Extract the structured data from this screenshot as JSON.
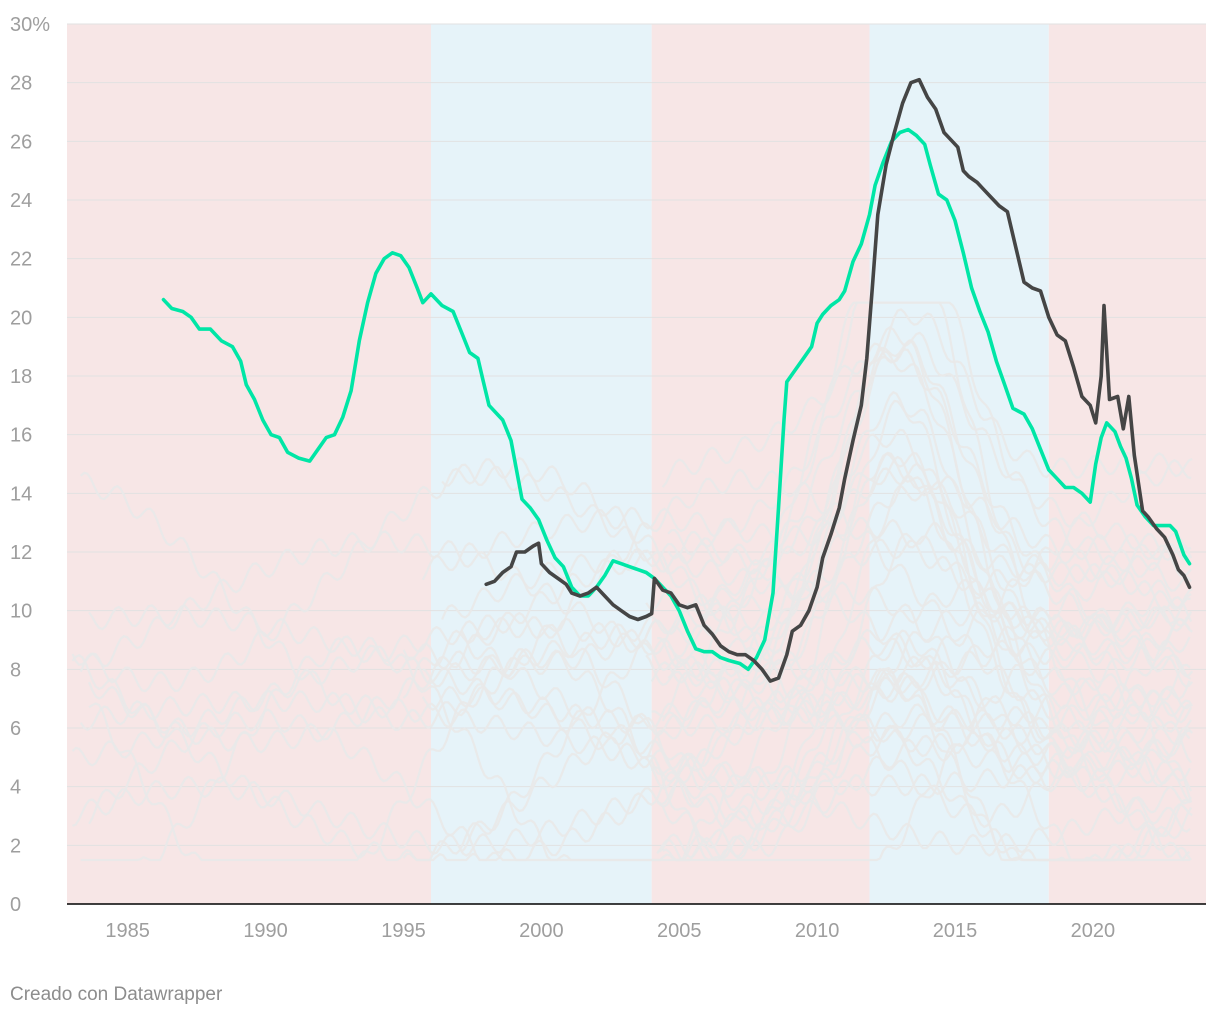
{
  "chart_data": {
    "type": "line",
    "title": "",
    "xlabel": "",
    "ylabel": "",
    "xlim": [
      1982.8,
      2024.1
    ],
    "ylim": [
      0,
      30
    ],
    "grid": true,
    "legend": "none",
    "x_ticks": [
      {
        "value": 1985,
        "label": "1985"
      },
      {
        "value": 1990,
        "label": "1990"
      },
      {
        "value": 1995,
        "label": "1995"
      },
      {
        "value": 2000,
        "label": "2000"
      },
      {
        "value": 2005,
        "label": "2005"
      },
      {
        "value": 2010,
        "label": "2010"
      },
      {
        "value": 2015,
        "label": "2015"
      },
      {
        "value": 2020,
        "label": "2020"
      }
    ],
    "y_ticks": [
      {
        "value": 30,
        "label": "30%"
      },
      {
        "value": 28,
        "label": "28"
      },
      {
        "value": 26,
        "label": "26"
      },
      {
        "value": 24,
        "label": "24"
      },
      {
        "value": 22,
        "label": "22"
      },
      {
        "value": 20,
        "label": "20"
      },
      {
        "value": 18,
        "label": "18"
      },
      {
        "value": 16,
        "label": "16"
      },
      {
        "value": 14,
        "label": "14"
      },
      {
        "value": 12,
        "label": "12"
      },
      {
        "value": 10,
        "label": "10"
      },
      {
        "value": 8,
        "label": "8"
      },
      {
        "value": 6,
        "label": "6"
      },
      {
        "value": 4,
        "label": "4"
      },
      {
        "value": 2,
        "label": "2"
      },
      {
        "value": 0,
        "label": "0"
      }
    ],
    "bands": [
      {
        "from": 1982.8,
        "to": 1996.0,
        "color": "#f7e6e6"
      },
      {
        "from": 1996.0,
        "to": 2004.0,
        "color": "#e6f3f9"
      },
      {
        "from": 2004.0,
        "to": 2011.9,
        "color": "#f7e6e6"
      },
      {
        "from": 2011.9,
        "to": 2018.4,
        "color": "#e6f3f9"
      },
      {
        "from": 2018.4,
        "to": 2024.1,
        "color": "#f7e6e6"
      }
    ],
    "highlight_series": [
      {
        "color": "#00e6a6",
        "points": [
          [
            1986.3,
            20.6
          ],
          [
            1986.6,
            20.3
          ],
          [
            1987.0,
            20.2
          ],
          [
            1987.3,
            20.0
          ],
          [
            1987.6,
            19.6
          ],
          [
            1988.0,
            19.6
          ],
          [
            1988.4,
            19.2
          ],
          [
            1988.8,
            19.0
          ],
          [
            1989.1,
            18.5
          ],
          [
            1989.3,
            17.7
          ],
          [
            1989.6,
            17.2
          ],
          [
            1989.9,
            16.5
          ],
          [
            1990.2,
            16.0
          ],
          [
            1990.5,
            15.9
          ],
          [
            1990.8,
            15.4
          ],
          [
            1991.2,
            15.2
          ],
          [
            1991.6,
            15.1
          ],
          [
            1991.9,
            15.5
          ],
          [
            1992.2,
            15.9
          ],
          [
            1992.5,
            16.0
          ],
          [
            1992.8,
            16.6
          ],
          [
            1993.1,
            17.5
          ],
          [
            1993.4,
            19.2
          ],
          [
            1993.7,
            20.5
          ],
          [
            1994.0,
            21.5
          ],
          [
            1994.3,
            22.0
          ],
          [
            1994.6,
            22.2
          ],
          [
            1994.9,
            22.1
          ],
          [
            1995.2,
            21.7
          ],
          [
            1995.5,
            21.0
          ],
          [
            1995.7,
            20.5
          ],
          [
            1996.0,
            20.8
          ],
          [
            1996.4,
            20.4
          ],
          [
            1996.8,
            20.2
          ],
          [
            1997.1,
            19.5
          ],
          [
            1997.4,
            18.8
          ],
          [
            1997.7,
            18.6
          ],
          [
            1997.9,
            17.8
          ],
          [
            1998.1,
            17.0
          ],
          [
            1998.4,
            16.7
          ],
          [
            1998.6,
            16.5
          ],
          [
            1998.9,
            15.8
          ],
          [
            1999.1,
            14.8
          ],
          [
            1999.3,
            13.8
          ],
          [
            1999.6,
            13.5
          ],
          [
            1999.9,
            13.1
          ],
          [
            2000.2,
            12.4
          ],
          [
            2000.5,
            11.8
          ],
          [
            2000.8,
            11.5
          ],
          [
            2001.1,
            10.8
          ],
          [
            2001.4,
            10.5
          ],
          [
            2001.7,
            10.5
          ],
          [
            2002.0,
            10.8
          ],
          [
            2002.3,
            11.2
          ],
          [
            2002.6,
            11.7
          ],
          [
            2002.9,
            11.6
          ],
          [
            2003.2,
            11.5
          ],
          [
            2003.5,
            11.4
          ],
          [
            2003.8,
            11.3
          ],
          [
            2004.1,
            11.1
          ],
          [
            2004.4,
            10.8
          ],
          [
            2004.7,
            10.5
          ],
          [
            2005.0,
            10.0
          ],
          [
            2005.3,
            9.3
          ],
          [
            2005.6,
            8.7
          ],
          [
            2005.9,
            8.6
          ],
          [
            2006.2,
            8.6
          ],
          [
            2006.5,
            8.4
          ],
          [
            2006.8,
            8.3
          ],
          [
            2007.2,
            8.2
          ],
          [
            2007.5,
            8.0
          ],
          [
            2007.8,
            8.4
          ],
          [
            2008.1,
            9.0
          ],
          [
            2008.4,
            10.6
          ],
          [
            2008.6,
            13.5
          ],
          [
            2008.8,
            16.5
          ],
          [
            2008.9,
            17.8
          ],
          [
            2009.2,
            18.2
          ],
          [
            2009.5,
            18.6
          ],
          [
            2009.8,
            19.0
          ],
          [
            2010.0,
            19.8
          ],
          [
            2010.2,
            20.1
          ],
          [
            2010.5,
            20.4
          ],
          [
            2010.8,
            20.6
          ],
          [
            2011.0,
            20.9
          ],
          [
            2011.3,
            21.9
          ],
          [
            2011.6,
            22.5
          ],
          [
            2011.9,
            23.5
          ],
          [
            2012.1,
            24.5
          ],
          [
            2012.4,
            25.3
          ],
          [
            2012.7,
            26.0
          ],
          [
            2013.0,
            26.3
          ],
          [
            2013.3,
            26.4
          ],
          [
            2013.6,
            26.2
          ],
          [
            2013.9,
            25.9
          ],
          [
            2014.1,
            25.2
          ],
          [
            2014.4,
            24.2
          ],
          [
            2014.7,
            24.0
          ],
          [
            2015.0,
            23.3
          ],
          [
            2015.3,
            22.2
          ],
          [
            2015.6,
            21.0
          ],
          [
            2015.9,
            20.2
          ],
          [
            2016.2,
            19.5
          ],
          [
            2016.5,
            18.5
          ],
          [
            2016.8,
            17.7
          ],
          [
            2017.1,
            16.9
          ],
          [
            2017.5,
            16.7
          ],
          [
            2017.8,
            16.2
          ],
          [
            2018.1,
            15.5
          ],
          [
            2018.4,
            14.8
          ],
          [
            2018.7,
            14.5
          ],
          [
            2019.0,
            14.2
          ],
          [
            2019.3,
            14.2
          ],
          [
            2019.6,
            14.0
          ],
          [
            2019.9,
            13.7
          ],
          [
            2020.1,
            15.0
          ],
          [
            2020.3,
            15.9
          ],
          [
            2020.5,
            16.4
          ],
          [
            2020.8,
            16.1
          ],
          [
            2021.0,
            15.6
          ],
          [
            2021.2,
            15.2
          ],
          [
            2021.4,
            14.5
          ],
          [
            2021.6,
            13.6
          ],
          [
            2021.9,
            13.2
          ],
          [
            2022.2,
            12.9
          ],
          [
            2022.5,
            12.9
          ],
          [
            2022.8,
            12.9
          ],
          [
            2023.0,
            12.7
          ],
          [
            2023.3,
            11.9
          ],
          [
            2023.5,
            11.6
          ]
        ]
      },
      {
        "color": "#454545",
        "points": [
          [
            1998.0,
            10.9
          ],
          [
            1998.3,
            11.0
          ],
          [
            1998.6,
            11.3
          ],
          [
            1998.9,
            11.5
          ],
          [
            1999.1,
            12.0
          ],
          [
            1999.4,
            12.0
          ],
          [
            1999.7,
            12.2
          ],
          [
            1999.9,
            12.3
          ],
          [
            2000.0,
            11.6
          ],
          [
            2000.3,
            11.3
          ],
          [
            2000.6,
            11.1
          ],
          [
            2000.9,
            10.9
          ],
          [
            2001.1,
            10.6
          ],
          [
            2001.4,
            10.5
          ],
          [
            2001.7,
            10.6
          ],
          [
            2002.0,
            10.8
          ],
          [
            2002.3,
            10.5
          ],
          [
            2002.6,
            10.2
          ],
          [
            2002.9,
            10.0
          ],
          [
            2003.2,
            9.8
          ],
          [
            2003.5,
            9.7
          ],
          [
            2003.8,
            9.8
          ],
          [
            2004.0,
            9.9
          ],
          [
            2004.1,
            11.1
          ],
          [
            2004.4,
            10.7
          ],
          [
            2004.7,
            10.6
          ],
          [
            2005.0,
            10.2
          ],
          [
            2005.3,
            10.1
          ],
          [
            2005.6,
            10.2
          ],
          [
            2005.9,
            9.5
          ],
          [
            2006.2,
            9.2
          ],
          [
            2006.5,
            8.8
          ],
          [
            2006.8,
            8.6
          ],
          [
            2007.1,
            8.5
          ],
          [
            2007.4,
            8.5
          ],
          [
            2007.7,
            8.3
          ],
          [
            2008.0,
            8.0
          ],
          [
            2008.3,
            7.6
          ],
          [
            2008.6,
            7.7
          ],
          [
            2008.9,
            8.5
          ],
          [
            2009.1,
            9.3
          ],
          [
            2009.4,
            9.5
          ],
          [
            2009.7,
            10.0
          ],
          [
            2010.0,
            10.8
          ],
          [
            2010.2,
            11.8
          ],
          [
            2010.5,
            12.6
          ],
          [
            2010.8,
            13.5
          ],
          [
            2011.0,
            14.5
          ],
          [
            2011.3,
            15.8
          ],
          [
            2011.6,
            17.0
          ],
          [
            2011.8,
            18.6
          ],
          [
            2012.0,
            21.0
          ],
          [
            2012.2,
            23.5
          ],
          [
            2012.5,
            25.2
          ],
          [
            2012.8,
            26.3
          ],
          [
            2013.1,
            27.3
          ],
          [
            2013.4,
            28.0
          ],
          [
            2013.7,
            28.1
          ],
          [
            2014.0,
            27.5
          ],
          [
            2014.3,
            27.1
          ],
          [
            2014.6,
            26.3
          ],
          [
            2014.9,
            26.0
          ],
          [
            2015.1,
            25.8
          ],
          [
            2015.3,
            25.0
          ],
          [
            2015.5,
            24.8
          ],
          [
            2015.8,
            24.6
          ],
          [
            2016.0,
            24.4
          ],
          [
            2016.3,
            24.1
          ],
          [
            2016.6,
            23.8
          ],
          [
            2016.9,
            23.6
          ],
          [
            2017.2,
            22.4
          ],
          [
            2017.5,
            21.2
          ],
          [
            2017.8,
            21.0
          ],
          [
            2018.1,
            20.9
          ],
          [
            2018.4,
            20.0
          ],
          [
            2018.7,
            19.4
          ],
          [
            2019.0,
            19.2
          ],
          [
            2019.3,
            18.3
          ],
          [
            2019.6,
            17.3
          ],
          [
            2019.9,
            17.0
          ],
          [
            2020.1,
            16.4
          ],
          [
            2020.3,
            18.0
          ],
          [
            2020.4,
            20.4
          ],
          [
            2020.6,
            17.2
          ],
          [
            2020.9,
            17.3
          ],
          [
            2021.1,
            16.2
          ],
          [
            2021.3,
            17.3
          ],
          [
            2021.5,
            15.3
          ],
          [
            2021.8,
            13.4
          ],
          [
            2022.0,
            13.2
          ],
          [
            2022.3,
            12.8
          ],
          [
            2022.6,
            12.5
          ],
          [
            2022.9,
            11.9
          ],
          [
            2023.1,
            11.4
          ],
          [
            2023.3,
            11.2
          ],
          [
            2023.5,
            10.8
          ]
        ]
      }
    ],
    "background_series_color": "#e9e9e9"
  },
  "footer": {
    "credit": "Creado con Datawrapper"
  }
}
